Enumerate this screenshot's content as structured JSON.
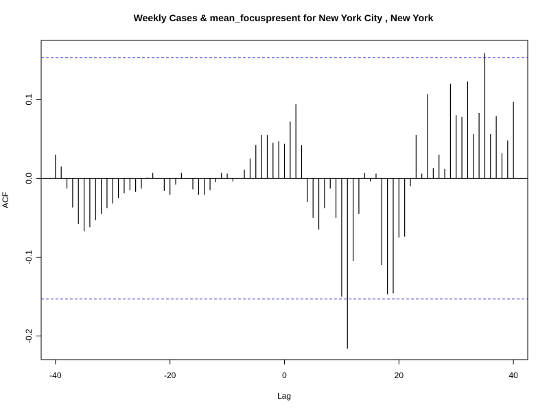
{
  "chart_data": {
    "type": "bar",
    "subtype": "acf-stem",
    "title": "Weekly Cases & mean_focuspresent for New York City , New York",
    "xlabel": "Lag",
    "ylabel": "ACF",
    "xlim": [
      -42.5,
      42.5
    ],
    "ylim": [
      -0.23,
      0.175
    ],
    "x_ticks": [
      -40,
      -20,
      0,
      20,
      40
    ],
    "x_tick_labels": [
      "-40",
      "-20",
      "0",
      "20",
      "40"
    ],
    "y_ticks": [
      -0.2,
      -0.1,
      0.0,
      0.1
    ],
    "y_tick_labels": [
      "-0.2",
      "-0.1",
      "0.0",
      "0.1"
    ],
    "confidence_bound": 0.153,
    "confidence_color": "#0000cc",
    "stem_color": "#000000",
    "grid": false,
    "x": [
      -40,
      -39,
      -38,
      -37,
      -36,
      -35,
      -34,
      -33,
      -32,
      -31,
      -30,
      -29,
      -28,
      -27,
      -26,
      -25,
      -24,
      -23,
      -22,
      -21,
      -20,
      -19,
      -18,
      -17,
      -16,
      -15,
      -14,
      -13,
      -12,
      -11,
      -10,
      -9,
      -8,
      -7,
      -6,
      -5,
      -4,
      -3,
      -2,
      -1,
      0,
      1,
      2,
      3,
      4,
      5,
      6,
      7,
      8,
      9,
      10,
      11,
      12,
      13,
      14,
      15,
      16,
      17,
      18,
      19,
      20,
      21,
      22,
      23,
      24,
      25,
      26,
      27,
      28,
      29,
      30,
      31,
      32,
      33,
      34,
      35,
      36,
      37,
      38,
      39,
      40
    ],
    "values": [
      0.03,
      0.015,
      -0.013,
      -0.037,
      -0.058,
      -0.067,
      -0.062,
      -0.053,
      -0.045,
      -0.038,
      -0.032,
      -0.025,
      -0.019,
      -0.015,
      -0.017,
      -0.013,
      0.001,
      0.007,
      0.0,
      -0.016,
      -0.021,
      -0.008,
      0.007,
      0.0,
      -0.014,
      -0.021,
      -0.021,
      -0.015,
      -0.005,
      0.007,
      0.006,
      -0.004,
      0.0,
      0.011,
      0.025,
      0.042,
      0.055,
      0.055,
      0.045,
      0.047,
      0.044,
      0.072,
      0.094,
      0.042,
      -0.03,
      -0.05,
      -0.065,
      -0.038,
      -0.013,
      -0.05,
      -0.15,
      -0.216,
      -0.105,
      -0.045,
      0.007,
      -0.004,
      0.006,
      -0.11,
      -0.147,
      -0.146,
      -0.075,
      -0.074,
      -0.01,
      0.055,
      0.006,
      0.107,
      0.013,
      0.03,
      0.012,
      0.12,
      0.08,
      0.078,
      0.123,
      0.056,
      0.083,
      0.159,
      0.056,
      0.079,
      0.032,
      0.048,
      0.097
    ]
  }
}
